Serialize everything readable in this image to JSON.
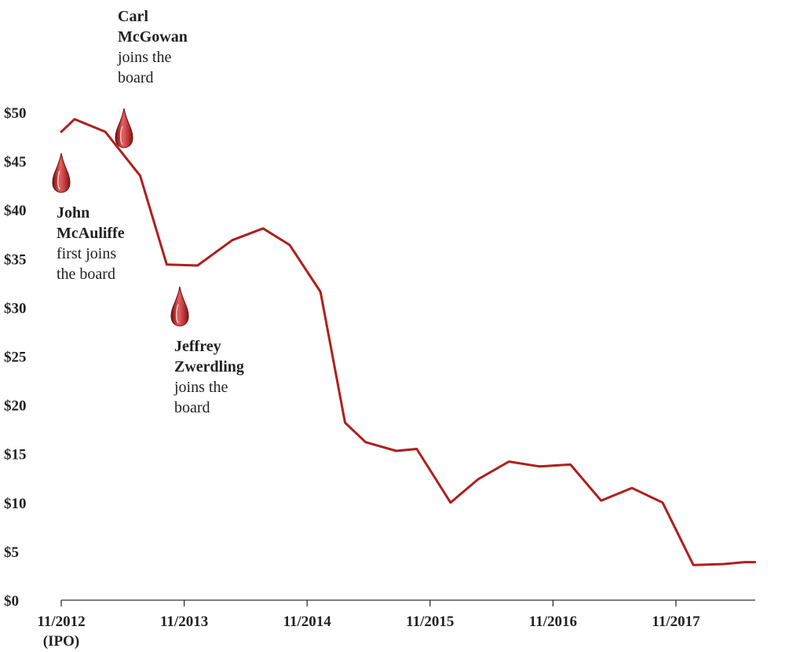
{
  "chart_data": {
    "type": "line",
    "title": "",
    "xlabel": "",
    "ylabel": "",
    "ylim": [
      0,
      50
    ],
    "y_ticks": [
      "$0",
      "$5",
      "$10",
      "$15",
      "$20",
      "$25",
      "$30",
      "$35",
      "$40",
      "$45",
      "$50"
    ],
    "x_tick_labels": [
      {
        "month": 0,
        "label": "11/2012",
        "sublabel": "(IPO)"
      },
      {
        "month": 12,
        "label": "11/2013"
      },
      {
        "month": 24,
        "label": "11/2014"
      },
      {
        "month": 36,
        "label": "11/2015"
      },
      {
        "month": 48,
        "label": "11/2016"
      },
      {
        "month": 60,
        "label": "11/2017"
      }
    ],
    "grid": false,
    "legend": "none",
    "line_color": "#b01e1e",
    "series": [
      {
        "x": [
          0,
          1.3,
          4.3,
          7.7,
          10.3,
          13.3,
          16.7,
          19.7,
          22.3,
          25.3,
          27.7,
          29.7,
          32.7,
          34.7,
          38.0,
          40.7,
          43.7,
          46.7,
          49.7,
          52.7,
          55.7,
          58.7,
          61.7,
          64.7,
          66.7,
          67.7
        ],
        "values": [
          48.0,
          49.3,
          48.0,
          43.5,
          34.4,
          34.3,
          36.9,
          38.1,
          36.4,
          31.6,
          18.2,
          16.2,
          15.3,
          15.5,
          10.0,
          12.4,
          14.2,
          13.7,
          13.9,
          10.2,
          11.5,
          10.0,
          3.6,
          3.7,
          3.9,
          3.9
        ]
      }
    ],
    "annotations": [
      {
        "lines": [
          {
            "text": "Carl",
            "bold": true
          },
          {
            "text": "McGowan",
            "bold": true
          },
          {
            "text": "joins the",
            "bold": false
          },
          {
            "text": "board",
            "bold": false
          }
        ],
        "month": 6.5
      },
      {
        "lines": [
          {
            "text": "John",
            "bold": true
          },
          {
            "text": "McAuliffe",
            "bold": true
          },
          {
            "text": "first joins",
            "bold": false
          },
          {
            "text": "the board",
            "bold": false
          }
        ],
        "month": 0.5
      },
      {
        "lines": [
          {
            "text": "Jeffrey",
            "bold": true
          },
          {
            "text": "Zwerdling",
            "bold": true
          },
          {
            "text": "joins the",
            "bold": false
          },
          {
            "text": "board",
            "bold": false
          }
        ],
        "month": 12
      }
    ]
  }
}
